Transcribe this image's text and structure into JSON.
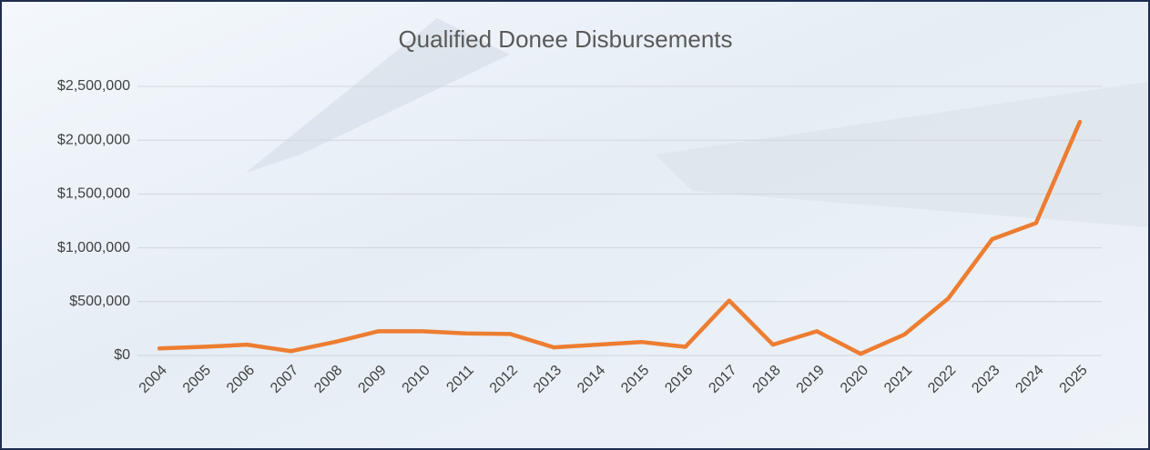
{
  "chart_data": {
    "type": "line",
    "title": "Qualified Donee Disbursements",
    "categories": [
      "2004",
      "2005",
      "2006",
      "2007",
      "2008",
      "2009",
      "2010",
      "2011",
      "2012",
      "2013",
      "2014",
      "2015",
      "2016",
      "2017",
      "2018",
      "2019",
      "2020",
      "2021",
      "2022",
      "2023",
      "2024",
      "2025"
    ],
    "series": [
      {
        "color": "#ed7d31",
        "values": [
          65000,
          80000,
          100000,
          40000,
          125000,
          225000,
          225000,
          205000,
          200000,
          75000,
          100000,
          125000,
          80000,
          510000,
          100000,
          225000,
          15000,
          195000,
          530000,
          1080000,
          1230000,
          2170000
        ]
      }
    ],
    "ylim": [
      0,
      2500000
    ],
    "yticks": [
      {
        "value": 0,
        "label": "$0"
      },
      {
        "value": 500000,
        "label": "$500,000"
      },
      {
        "value": 1000000,
        "label": "$1,000,000"
      },
      {
        "value": 1500000,
        "label": "$1,500,000"
      },
      {
        "value": 2000000,
        "label": "$2,000,000"
      },
      {
        "value": 2500000,
        "label": "$2,500,000"
      }
    ],
    "grid": true
  }
}
